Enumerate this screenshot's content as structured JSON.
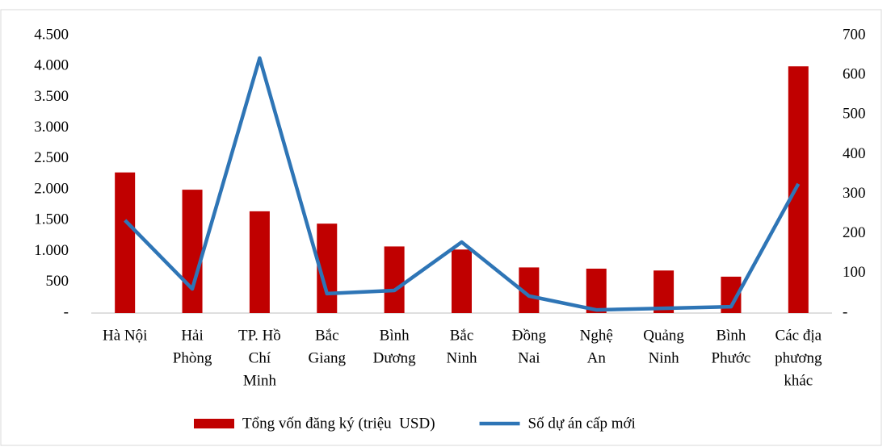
{
  "chart_data": {
    "type": "bar_line",
    "categories": [
      [
        "Hà Nội"
      ],
      [
        "Hải",
        "Phòng"
      ],
      [
        "TP. Hồ",
        "Chí",
        "Minh"
      ],
      [
        "Bắc",
        "Giang"
      ],
      [
        "Bình",
        "Dương"
      ],
      [
        "Bắc",
        "Ninh"
      ],
      [
        "Đồng",
        "Nai"
      ],
      [
        "Nghệ",
        "An"
      ],
      [
        "Quảng",
        "Ninh"
      ],
      [
        "Bình",
        "Phước"
      ],
      [
        "Các địa",
        "phương",
        "khác"
      ]
    ],
    "series": [
      {
        "name": "Tổng vốn đăng ký (triệu  USD)",
        "type": "bar",
        "color": "#c00000",
        "values": [
          2280,
          2000,
          1650,
          1450,
          1080,
          1030,
          740,
          720,
          690,
          590,
          4000
        ]
      },
      {
        "name": "Số dự án cấp mới",
        "type": "line",
        "axis": "y2",
        "color": "#2e75b6",
        "values": [
          234,
          61,
          643,
          49,
          57,
          179,
          43,
          8,
          12,
          16,
          326
        ]
      }
    ],
    "ylim": [
      0,
      4500
    ],
    "yticks": [
      {
        "value": 0,
        "label": "-"
      },
      500,
      {
        "value": 1000,
        "label": "1.000"
      },
      {
        "value": 1500,
        "label": "1.500"
      },
      {
        "value": 2000,
        "label": "2.000"
      },
      {
        "value": 2500,
        "label": "2.500"
      },
      {
        "value": 3000,
        "label": "3.000"
      },
      {
        "value": 3500,
        "label": "3.500"
      },
      {
        "value": 4000,
        "label": "4.000"
      },
      {
        "value": 4500,
        "label": "4.500"
      }
    ],
    "y2lim": [
      0,
      700
    ],
    "y2ticks": [
      {
        "value": 0,
        "label": "-"
      },
      100,
      200,
      300,
      400,
      500,
      600,
      700
    ],
    "legend": "bottom"
  }
}
